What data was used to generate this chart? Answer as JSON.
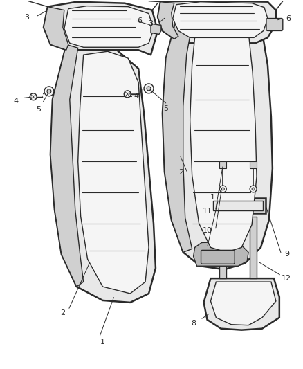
{
  "background_color": "#ffffff",
  "line_color": "#2a2a2a",
  "fill_light": "#e8e8e8",
  "fill_mid": "#d0d0d0",
  "fill_dark": "#b8b8b8",
  "fill_white": "#f5f5f5",
  "lw_main": 1.8,
  "lw_inner": 1.0,
  "lw_stripe": 0.8,
  "lw_leader": 0.7,
  "label_fs": 8,
  "fig_w": 4.38,
  "fig_h": 5.33,
  "dpi": 100
}
